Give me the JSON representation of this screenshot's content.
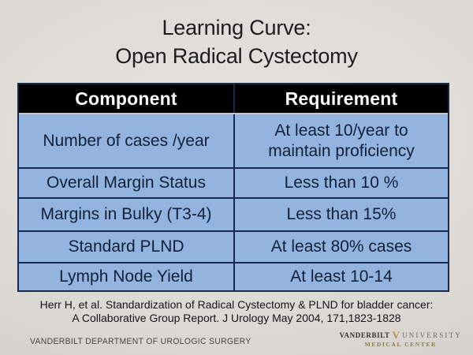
{
  "title": {
    "line1": "Learning Curve:",
    "line2": "Open Radical Cystectomy"
  },
  "table": {
    "headers": [
      "Component",
      "Requirement"
    ],
    "rows": [
      [
        "Number of cases /year",
        "At least 10/year to maintain proficiency"
      ],
      [
        "Overall Margin Status",
        "Less than 10 %"
      ],
      [
        "Margins in Bulky (T3-4)",
        "Less than 15%"
      ],
      [
        "Standard PLND",
        "At least 80% cases"
      ],
      [
        "Lymph Node Yield",
        "At least 10-14"
      ]
    ]
  },
  "citation": {
    "line1": "Herr H,  et al. Standardization of Radical Cystectomy & PLND for bladder cancer:",
    "line2": "A Collaborative Group Report. J Urology May 2004, 171,1823-1828"
  },
  "footer": {
    "department": "VANDERBILT DEPARTMENT OF UROLOGIC SURGERY",
    "logo": {
      "name": "VANDERBILT",
      "mark": "V",
      "suffix": "UNIVERSITY",
      "subtitle": "MEDICAL CENTER"
    }
  },
  "colors": {
    "background": "#dcd9d4",
    "table_fill": "#92b4de",
    "table_border": "#17294d",
    "header_bg": "#000000",
    "header_text": "#ffffff",
    "cell_text": "#10203a",
    "logo_gold": "#b3954d",
    "logo_bronze": "#8d7844"
  }
}
